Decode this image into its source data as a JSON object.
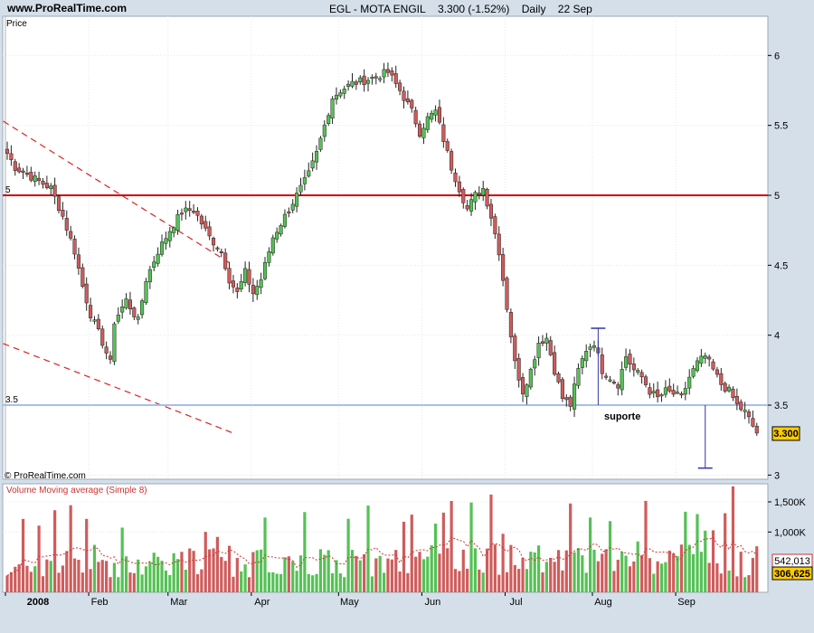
{
  "header": {
    "site": "www.ProRealTime.com",
    "symbol": "EGL - MOTA ENGIL",
    "price_change": "3.300 (-1.52%)",
    "period": "Daily",
    "date": "22 Sep"
  },
  "price_panel": {
    "label": "Price",
    "watermark": "© ProRealTime.com",
    "resistance_label": "5",
    "support_label": "3.5",
    "support_note": "suporte",
    "last_price_tag": "3.300"
  },
  "volume_panel": {
    "label": "Volume Moving average (Simple 8)",
    "ma_tag": "542,013",
    "volume_tag": "306,625"
  },
  "colors": {
    "up": "#55C155",
    "down": "#CF5C5C",
    "resistance": "#CC0000",
    "support": "#A8BEEB",
    "trend": "#DD2222",
    "marker": "#3333AA",
    "ma": "#CC3333",
    "panel_bg": "#FFFFFF",
    "frame_bg": "#D4DFEA"
  },
  "chart_data": [
    {
      "type": "candlestick",
      "title": "EGL - MOTA ENGIL",
      "ylabel": "Price",
      "ylim": [
        2.97,
        6.28
      ],
      "yticks": [
        "3",
        "3.5",
        "4",
        "4.5",
        "5",
        "5.5",
        "6"
      ],
      "x_labels": [
        "2008",
        "Feb",
        "Mar",
        "Apr",
        "May",
        "Jun",
        "Jul",
        "Aug",
        "Sep"
      ],
      "x_label_days": [
        0,
        21,
        41,
        62,
        84,
        105,
        126,
        148,
        169
      ],
      "resistance": 5.0,
      "support": 3.5,
      "last_price": 3.3,
      "close_anchors": [
        [
          0,
          5.3
        ],
        [
          2,
          5.2
        ],
        [
          5,
          5.15
        ],
        [
          8,
          5.1
        ],
        [
          11,
          5.05
        ],
        [
          14,
          4.85
        ],
        [
          17,
          4.6
        ],
        [
          19,
          4.35
        ],
        [
          21,
          4.15
        ],
        [
          24,
          3.95
        ],
        [
          26,
          3.8
        ],
        [
          27,
          4.1
        ],
        [
          30,
          4.25
        ],
        [
          33,
          4.1
        ],
        [
          35,
          4.4
        ],
        [
          38,
          4.6
        ],
        [
          41,
          4.75
        ],
        [
          44,
          4.88
        ],
        [
          47,
          4.9
        ],
        [
          49,
          4.8
        ],
        [
          51,
          4.7
        ],
        [
          54,
          4.6
        ],
        [
          56,
          4.4
        ],
        [
          58,
          4.3
        ],
        [
          60,
          4.45
        ],
        [
          62,
          4.3
        ],
        [
          64,
          4.4
        ],
        [
          67,
          4.7
        ],
        [
          70,
          4.85
        ],
        [
          73,
          5.0
        ],
        [
          76,
          5.15
        ],
        [
          78,
          5.3
        ],
        [
          80,
          5.5
        ],
        [
          82,
          5.7
        ],
        [
          84,
          5.75
        ],
        [
          87,
          5.8
        ],
        [
          90,
          5.82
        ],
        [
          93,
          5.85
        ],
        [
          96,
          5.88
        ],
        [
          99,
          5.75
        ],
        [
          102,
          5.6
        ],
        [
          104,
          5.45
        ],
        [
          106,
          5.55
        ],
        [
          108,
          5.6
        ],
        [
          110,
          5.4
        ],
        [
          112,
          5.2
        ],
        [
          114,
          5.05
        ],
        [
          116,
          4.9
        ],
        [
          118,
          5.0
        ],
        [
          120,
          5.05
        ],
        [
          122,
          4.85
        ],
        [
          124,
          4.6
        ],
        [
          126,
          4.2
        ],
        [
          128,
          3.8
        ],
        [
          130,
          3.6
        ],
        [
          132,
          3.75
        ],
        [
          134,
          3.95
        ],
        [
          136,
          3.98
        ],
        [
          138,
          3.75
        ],
        [
          140,
          3.55
        ],
        [
          142,
          3.5
        ],
        [
          144,
          3.75
        ],
        [
          146,
          3.9
        ],
        [
          148,
          3.95
        ],
        [
          150,
          3.75
        ],
        [
          152,
          3.7
        ],
        [
          154,
          3.65
        ],
        [
          156,
          3.85
        ],
        [
          158,
          3.75
        ],
        [
          160,
          3.7
        ],
        [
          162,
          3.6
        ],
        [
          164,
          3.55
        ],
        [
          166,
          3.6
        ],
        [
          168,
          3.58
        ],
        [
          170,
          3.55
        ],
        [
          172,
          3.7
        ],
        [
          174,
          3.8
        ],
        [
          176,
          3.85
        ],
        [
          178,
          3.75
        ],
        [
          180,
          3.65
        ],
        [
          182,
          3.6
        ],
        [
          184,
          3.5
        ],
        [
          186,
          3.45
        ],
        [
          188,
          3.35
        ],
        [
          189,
          3.3
        ]
      ],
      "trend_upper": [
        [
          -1,
          5.53
        ],
        [
          57,
          4.5
        ]
      ],
      "trend_lower": [
        [
          -1,
          3.94
        ],
        [
          57,
          3.3
        ]
      ],
      "annotation_aug": {
        "day": 149,
        "low": 3.5,
        "high": 4.05
      },
      "annotation_sep": {
        "day": 176,
        "low": 3.05,
        "high": 3.5
      }
    },
    {
      "type": "bar",
      "title": "Volume Moving average (Simple 8)",
      "ylim": [
        0,
        1800000
      ],
      "yticks": [
        "1,000K",
        "1,500K"
      ],
      "ytick_values": [
        1000000,
        1500000
      ],
      "ma_last": 542013,
      "volume_last": 306625
    }
  ]
}
